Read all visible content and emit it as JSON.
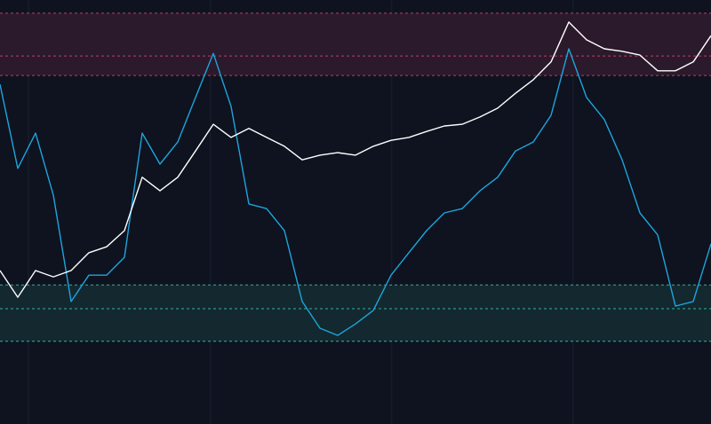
{
  "chart_data": {
    "type": "line",
    "background": "#0e131f",
    "xlim": [
      0,
      100
    ],
    "ylim": [
      0,
      100
    ],
    "xticks": [
      4,
      29.6,
      55.1,
      80.6
    ],
    "x": [
      0,
      2.5,
      5,
      7.5,
      10,
      12.5,
      15,
      17.5,
      20,
      22.5,
      25,
      27.5,
      30,
      32.5,
      35,
      37.5,
      40,
      42.5,
      45,
      47.5,
      50,
      52.5,
      55,
      57.5,
      60,
      62.5,
      65,
      67.5,
      70,
      72.5,
      75,
      77.5,
      80,
      82.5,
      85,
      87.5,
      90,
      92.5,
      95,
      97.5,
      100
    ],
    "bands": [
      {
        "from": 82.2,
        "to": 96.9,
        "fill": "#2b1a2b",
        "line_color": "#c43a66",
        "lines": [
          96.9,
          86.8,
          82.2
        ]
      },
      {
        "from": 19.5,
        "to": 32.8,
        "fill": "#13292f",
        "line_color": "#2fb3a0",
        "lines": [
          32.8,
          27.2,
          19.5
        ]
      }
    ],
    "series": [
      {
        "color": "#1ea4dd",
        "values": [
          80.1,
          60.3,
          68.6,
          54.0,
          28.9,
          35.1,
          35.1,
          39.3,
          68.6,
          61.3,
          66.5,
          77.0,
          87.4,
          74.9,
          51.9,
          50.8,
          45.6,
          28.9,
          22.6,
          20.9,
          23.6,
          26.8,
          35.1,
          40.4,
          45.6,
          49.8,
          50.8,
          55.0,
          58.2,
          64.4,
          66.5,
          72.8,
          88.5,
          77.0,
          71.8,
          62.3,
          49.8,
          44.6,
          27.8,
          28.9,
          42.5
        ]
      },
      {
        "color": "#ffffff",
        "values": [
          36.2,
          29.9,
          36.2,
          34.7,
          36.2,
          40.4,
          41.8,
          45.6,
          58.2,
          55.0,
          58.2,
          64.4,
          70.7,
          67.6,
          69.7,
          67.6,
          65.5,
          62.3,
          63.4,
          64.0,
          63.4,
          65.5,
          66.9,
          67.6,
          69.0,
          70.3,
          70.7,
          72.4,
          74.5,
          78.0,
          81.2,
          85.4,
          94.8,
          90.6,
          88.5,
          87.9,
          87.0,
          83.3,
          83.3,
          85.4,
          91.6
        ]
      }
    ]
  }
}
